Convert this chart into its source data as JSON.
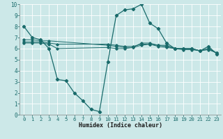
{
  "xlabel": "Humidex (Indice chaleur)",
  "ylabel": "",
  "xlim": [
    -0.5,
    23.5
  ],
  "ylim": [
    0,
    10
  ],
  "bg_color": "#cce8e8",
  "line_color": "#1a6b6b",
  "grid_color": "#b0d8d8",
  "lines": [
    {
      "x": [
        0,
        1,
        2,
        3,
        4,
        5,
        6,
        7,
        8,
        9,
        10,
        11,
        12,
        13,
        14,
        15,
        16,
        17,
        18,
        19,
        20,
        21,
        22,
        23
      ],
      "y": [
        8.0,
        7.0,
        6.8,
        6.0,
        3.2,
        3.1,
        2.0,
        1.3,
        0.5,
        0.3,
        4.8,
        9.0,
        9.5,
        9.6,
        10.0,
        8.3,
        7.8,
        6.5,
        6.0,
        6.0,
        6.0,
        5.8,
        6.2,
        5.5
      ]
    },
    {
      "x": [
        0,
        1,
        2,
        3,
        10,
        11,
        12,
        13,
        14,
        15,
        16,
        17,
        18,
        19,
        20,
        21,
        22,
        23
      ],
      "y": [
        6.8,
        6.8,
        6.7,
        6.7,
        6.3,
        6.2,
        6.1,
        6.1,
        6.5,
        6.5,
        6.3,
        6.3,
        6.0,
        6.0,
        6.0,
        5.8,
        6.0,
        5.6
      ]
    },
    {
      "x": [
        0,
        1,
        2,
        3,
        4,
        10,
        11,
        12,
        13,
        14,
        15,
        16,
        17,
        18,
        19,
        20,
        21,
        22,
        23
      ],
      "y": [
        6.5,
        6.5,
        6.5,
        6.4,
        6.0,
        6.1,
        6.0,
        6.0,
        6.1,
        6.3,
        6.4,
        6.2,
        6.1,
        6.0,
        5.9,
        5.9,
        5.8,
        5.9,
        5.6
      ]
    },
    {
      "x": [
        0,
        1,
        2,
        3,
        4,
        10,
        11,
        12,
        13,
        14,
        15,
        16,
        17,
        18,
        19,
        20,
        21,
        22,
        23
      ],
      "y": [
        6.6,
        6.6,
        6.6,
        6.5,
        6.4,
        6.4,
        6.3,
        6.2,
        6.2,
        6.4,
        6.4,
        6.3,
        6.2,
        6.0,
        6.0,
        6.0,
        5.8,
        6.0,
        5.6
      ]
    }
  ]
}
